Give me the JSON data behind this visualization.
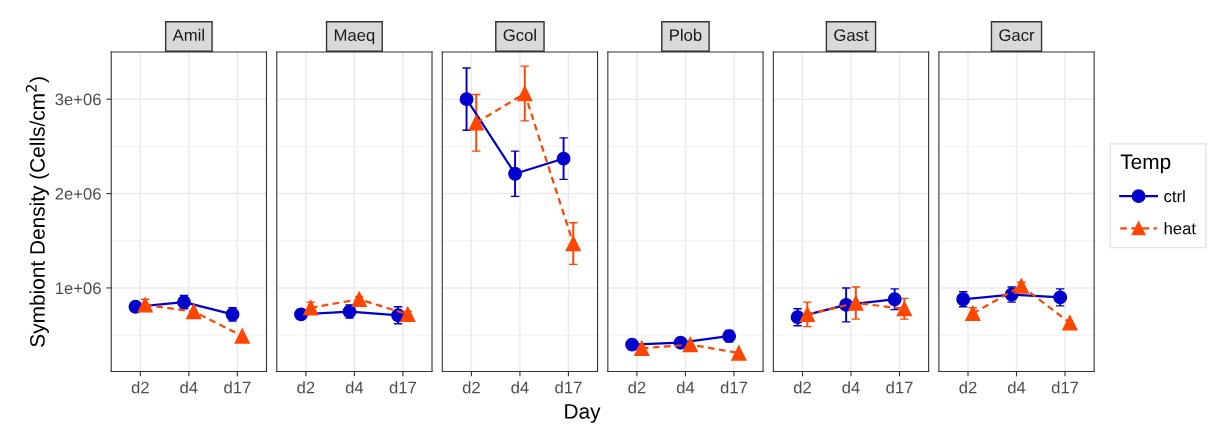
{
  "chart_data": [
    {
      "type": "line",
      "title": "Amil",
      "ylabel": "Symbiont Density (Cells/cm$^{2}$)",
      "categories": [
        "d2",
        "d4",
        "d17"
      ],
      "ylim": [
        115000,
        3500000
      ],
      "yticks": [
        {
          "value": 1000000,
          "label": "1e+06"
        },
        {
          "value": 2000000,
          "label": "2e+06"
        },
        {
          "value": 3000000,
          "label": "3e+06"
        }
      ],
      "grid": true,
      "legend": false,
      "series": [
        {
          "color": "#0000cc",
          "marker": "circle",
          "line_style": "solid",
          "values": [
            800000,
            850000,
            720000
          ],
          "errors": [
            20000,
            70000,
            70000
          ]
        },
        {
          "color": "#ff4500",
          "marker": "triangle",
          "line_style": "dashed",
          "values": [
            820000,
            750000,
            490000
          ],
          "errors": [
            60000,
            null,
            null
          ]
        }
      ]
    },
    {
      "type": "line",
      "title": "Maeq",
      "categories": [
        "d2",
        "d4",
        "d17"
      ],
      "ylim": [
        115000,
        3500000
      ],
      "tick_labels": "x",
      "grid": true,
      "legend": false,
      "series": [
        {
          "color": "#0000cc",
          "marker": "circle",
          "line_style": "solid",
          "values": [
            720000,
            750000,
            710000
          ],
          "errors": [
            50000,
            70000,
            90000
          ]
        },
        {
          "color": "#ff4500",
          "marker": "triangle",
          "line_style": "dashed",
          "values": [
            790000,
            880000,
            720000
          ],
          "errors": [
            60000,
            30000,
            30000
          ]
        }
      ]
    },
    {
      "type": "line",
      "title": "Gcol",
      "xlabel": "Day",
      "categories": [
        "d2",
        "d4",
        "d17"
      ],
      "ylim": [
        115000,
        3500000
      ],
      "tick_labels": "x",
      "grid": true,
      "legend": false,
      "series": [
        {
          "color": "#0000cc",
          "marker": "circle",
          "line_style": "solid",
          "values": [
            3000000,
            2210000,
            2370000
          ],
          "errors": [
            330000,
            240000,
            220000
          ]
        },
        {
          "color": "#ff4500",
          "marker": "triangle",
          "line_style": "dashed",
          "values": [
            2750000,
            3060000,
            1470000
          ],
          "errors": [
            300000,
            290000,
            220000
          ]
        }
      ]
    },
    {
      "type": "line",
      "title": "Plob",
      "categories": [
        "d2",
        "d4",
        "d17"
      ],
      "ylim": [
        115000,
        3500000
      ],
      "tick_labels": "x",
      "grid": true,
      "legend": false,
      "series": [
        {
          "color": "#0000cc",
          "marker": "circle",
          "line_style": "solid",
          "values": [
            400000,
            420000,
            490000
          ],
          "errors": [
            null,
            null,
            60000
          ]
        },
        {
          "color": "#ff4500",
          "marker": "triangle",
          "line_style": "dashed",
          "values": [
            360000,
            400000,
            310000
          ],
          "errors": [
            null,
            null,
            null
          ]
        }
      ]
    },
    {
      "type": "line",
      "title": "Gast",
      "categories": [
        "d2",
        "d4",
        "d17"
      ],
      "ylim": [
        115000,
        3500000
      ],
      "tick_labels": "x",
      "grid": true,
      "legend": false,
      "series": [
        {
          "color": "#0000cc",
          "marker": "circle",
          "line_style": "solid",
          "values": [
            690000,
            820000,
            880000
          ],
          "errors": [
            90000,
            180000,
            110000
          ]
        },
        {
          "color": "#ff4500",
          "marker": "triangle",
          "line_style": "dashed",
          "values": [
            720000,
            840000,
            780000
          ],
          "errors": [
            130000,
            170000,
            110000
          ]
        }
      ]
    },
    {
      "type": "line",
      "title": "Gacr",
      "categories": [
        "d2",
        "d4",
        "d17"
      ],
      "ylim": [
        115000,
        3500000
      ],
      "tick_labels": "x",
      "grid": true,
      "legend": "right",
      "legend_title": "Temp",
      "series": [
        {
          "name": "ctrl",
          "color": "#0000cc",
          "marker": "circle",
          "line_style": "solid",
          "values": [
            880000,
            930000,
            900000
          ],
          "errors": [
            80000,
            80000,
            90000
          ]
        },
        {
          "name": "heat",
          "color": "#ff4500",
          "marker": "triangle",
          "line_style": "dashed",
          "values": [
            730000,
            1020000,
            630000
          ],
          "errors": [
            60000,
            40000,
            null
          ]
        }
      ]
    }
  ]
}
